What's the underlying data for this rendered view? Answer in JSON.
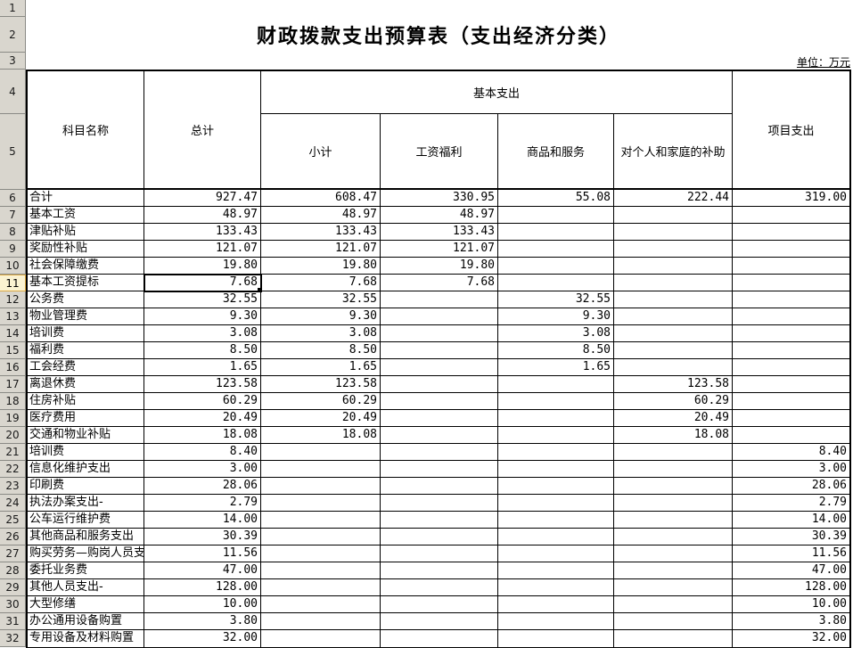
{
  "title": "财政拨款支出预算表（支出经济分类）",
  "unit_label": "单位：万元",
  "colors": {
    "active_row_header_bg": "#FBF3D2",
    "active_row_header_border": "#DCA943",
    "row_header_bg": "#D9D6CE",
    "grid_line": "#000000"
  },
  "gutter_top_rows": [
    "1",
    "2",
    "3",
    "4",
    "5"
  ],
  "selection": {
    "row_number": "11",
    "column": "total"
  },
  "table": {
    "header": {
      "subject": "科目名称",
      "total": "总计",
      "basic_group": "基本支出",
      "subtotal": "小计",
      "wages": "工资福利",
      "goods": "商品和服务",
      "family": "对个人和家庭的补助",
      "project": "项目支出"
    },
    "column_keys": [
      "name",
      "total",
      "subtotal",
      "wages",
      "goods",
      "family",
      "project"
    ],
    "rows": [
      {
        "num": "6",
        "name": "合计",
        "total": "927.47",
        "subtotal": "608.47",
        "wages": "330.95",
        "goods": "55.08",
        "family": "222.44",
        "project": "319.00"
      },
      {
        "num": "7",
        "name": "基本工资",
        "total": "48.97",
        "subtotal": "48.97",
        "wages": "48.97",
        "goods": "",
        "family": "",
        "project": ""
      },
      {
        "num": "8",
        "name": "津贴补贴",
        "total": "133.43",
        "subtotal": "133.43",
        "wages": "133.43",
        "goods": "",
        "family": "",
        "project": ""
      },
      {
        "num": "9",
        "name": "奖励性补贴",
        "total": "121.07",
        "subtotal": "121.07",
        "wages": "121.07",
        "goods": "",
        "family": "",
        "project": ""
      },
      {
        "num": "10",
        "name": "社会保障缴费",
        "total": "19.80",
        "subtotal": "19.80",
        "wages": "19.80",
        "goods": "",
        "family": "",
        "project": ""
      },
      {
        "num": "11",
        "name": "基本工资提标",
        "total": "7.68",
        "subtotal": "7.68",
        "wages": "7.68",
        "goods": "",
        "family": "",
        "project": ""
      },
      {
        "num": "12",
        "name": "公务费",
        "total": "32.55",
        "subtotal": "32.55",
        "wages": "",
        "goods": "32.55",
        "family": "",
        "project": ""
      },
      {
        "num": "13",
        "name": "物业管理费",
        "total": "9.30",
        "subtotal": "9.30",
        "wages": "",
        "goods": "9.30",
        "family": "",
        "project": ""
      },
      {
        "num": "14",
        "name": "培训费",
        "total": "3.08",
        "subtotal": "3.08",
        "wages": "",
        "goods": "3.08",
        "family": "",
        "project": ""
      },
      {
        "num": "15",
        "name": "福利费",
        "total": "8.50",
        "subtotal": "8.50",
        "wages": "",
        "goods": "8.50",
        "family": "",
        "project": ""
      },
      {
        "num": "16",
        "name": "工会经费",
        "total": "1.65",
        "subtotal": "1.65",
        "wages": "",
        "goods": "1.65",
        "family": "",
        "project": ""
      },
      {
        "num": "17",
        "name": "离退休费",
        "total": "123.58",
        "subtotal": "123.58",
        "wages": "",
        "goods": "",
        "family": "123.58",
        "project": ""
      },
      {
        "num": "18",
        "name": "住房补贴",
        "total": "60.29",
        "subtotal": "60.29",
        "wages": "",
        "goods": "",
        "family": "60.29",
        "project": ""
      },
      {
        "num": "19",
        "name": "医疗费用",
        "total": "20.49",
        "subtotal": "20.49",
        "wages": "",
        "goods": "",
        "family": "20.49",
        "project": ""
      },
      {
        "num": "20",
        "name": "交通和物业补贴",
        "total": "18.08",
        "subtotal": "18.08",
        "wages": "",
        "goods": "",
        "family": "18.08",
        "project": ""
      },
      {
        "num": "21",
        "name": "培训费",
        "total": "8.40",
        "subtotal": "",
        "wages": "",
        "goods": "",
        "family": "",
        "project": "8.40"
      },
      {
        "num": "22",
        "name": "信息化维护支出",
        "total": "3.00",
        "subtotal": "",
        "wages": "",
        "goods": "",
        "family": "",
        "project": "3.00"
      },
      {
        "num": "23",
        "name": "印刷费",
        "total": "28.06",
        "subtotal": "",
        "wages": "",
        "goods": "",
        "family": "",
        "project": "28.06"
      },
      {
        "num": "24",
        "name": "执法办案支出-",
        "total": "2.79",
        "subtotal": "",
        "wages": "",
        "goods": "",
        "family": "",
        "project": "2.79"
      },
      {
        "num": "25",
        "name": "公车运行维护费",
        "total": "14.00",
        "subtotal": "",
        "wages": "",
        "goods": "",
        "family": "",
        "project": "14.00"
      },
      {
        "num": "26",
        "name": "其他商品和服务支出",
        "total": "30.39",
        "subtotal": "",
        "wages": "",
        "goods": "",
        "family": "",
        "project": "30.39"
      },
      {
        "num": "27",
        "name": "购买劳务—购岗人员支",
        "total": "11.56",
        "subtotal": "",
        "wages": "",
        "goods": "",
        "family": "",
        "project": "11.56"
      },
      {
        "num": "28",
        "name": "委托业务费",
        "total": "47.00",
        "subtotal": "",
        "wages": "",
        "goods": "",
        "family": "",
        "project": "47.00"
      },
      {
        "num": "29",
        "name": "其他人员支出-",
        "total": "128.00",
        "subtotal": "",
        "wages": "",
        "goods": "",
        "family": "",
        "project": "128.00"
      },
      {
        "num": "30",
        "name": "大型修缮",
        "total": "10.00",
        "subtotal": "",
        "wages": "",
        "goods": "",
        "family": "",
        "project": "10.00"
      },
      {
        "num": "31",
        "name": "办公通用设备购置",
        "total": "3.80",
        "subtotal": "",
        "wages": "",
        "goods": "",
        "family": "",
        "project": "3.80"
      },
      {
        "num": "32",
        "name": "专用设备及材料购置",
        "total": "32.00",
        "subtotal": "",
        "wages": "",
        "goods": "",
        "family": "",
        "project": "32.00"
      }
    ]
  }
}
